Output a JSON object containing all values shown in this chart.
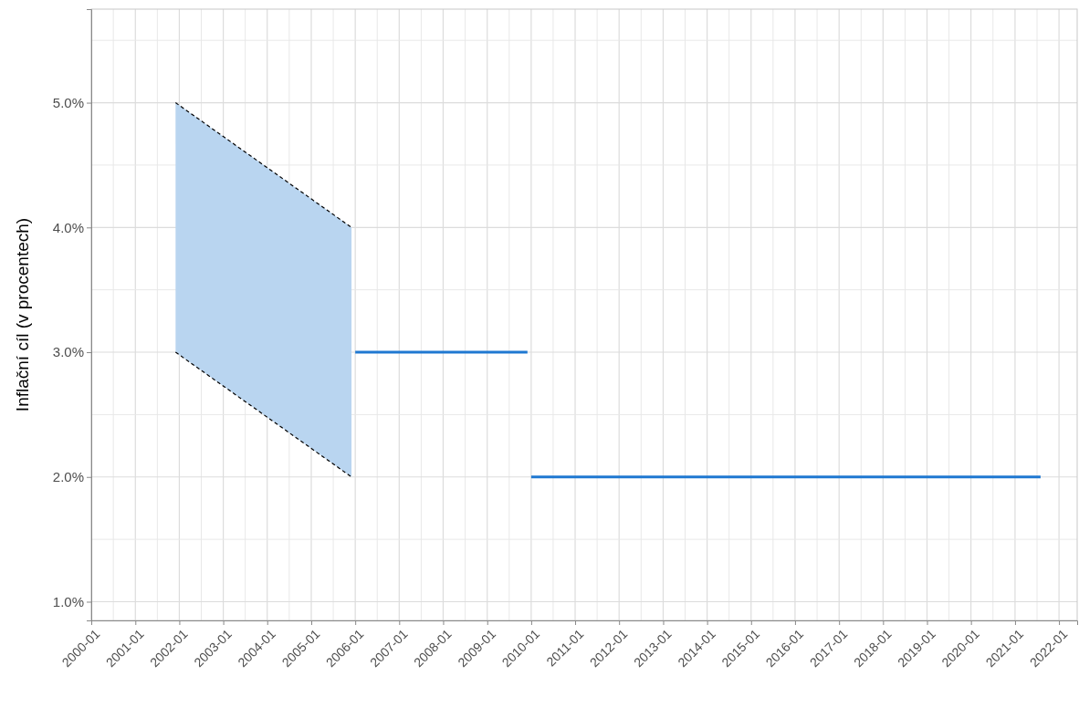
{
  "chart_data": {
    "type": "line",
    "ylabel": "Inflační cíl (v procentech)",
    "xlim": [
      "2000-01",
      "2022-06"
    ],
    "xticks": [
      {
        "value": "2000-01",
        "label": "2000-01"
      },
      {
        "value": "2001-01",
        "label": "2001-01"
      },
      {
        "value": "2002-01",
        "label": "2002-01"
      },
      {
        "value": "2003-01",
        "label": "2003-01"
      },
      {
        "value": "2004-01",
        "label": "2004-01"
      },
      {
        "value": "2005-01",
        "label": "2005-01"
      },
      {
        "value": "2006-01",
        "label": "2006-01"
      },
      {
        "value": "2007-01",
        "label": "2007-01"
      },
      {
        "value": "2008-01",
        "label": "2008-01"
      },
      {
        "value": "2009-01",
        "label": "2009-01"
      },
      {
        "value": "2010-01",
        "label": "2010-01"
      },
      {
        "value": "2011-01",
        "label": "2011-01"
      },
      {
        "value": "2012-01",
        "label": "2012-01"
      },
      {
        "value": "2013-01",
        "label": "2013-01"
      },
      {
        "value": "2014-01",
        "label": "2014-01"
      },
      {
        "value": "2015-01",
        "label": "2015-01"
      },
      {
        "value": "2016-01",
        "label": "2016-01"
      },
      {
        "value": "2017-01",
        "label": "2017-01"
      },
      {
        "value": "2018-01",
        "label": "2018-01"
      },
      {
        "value": "2019-01",
        "label": "2019-01"
      },
      {
        "value": "2020-01",
        "label": "2020-01"
      },
      {
        "value": "2021-01",
        "label": "2021-01"
      },
      {
        "value": "2022-01",
        "label": "2022-01"
      }
    ],
    "ylim": [
      0.85,
      5.75
    ],
    "yticks": [
      {
        "value": 1,
        "label": "1.0%"
      },
      {
        "value": 2,
        "label": "2.0%"
      },
      {
        "value": 3,
        "label": "3.0%"
      },
      {
        "value": 4,
        "label": "4.0%"
      },
      {
        "value": 5,
        "label": "5.0%"
      }
    ],
    "grid": true,
    "series": [
      {
        "color": "#000000",
        "line_style": "dashed",
        "x": [
          "2001-12",
          "2005-12"
        ],
        "values": [
          5,
          4
        ],
        "lower": [
          3,
          2
        ],
        "upper": [
          5,
          4
        ]
      },
      {
        "color": "#000000",
        "line_style": "dashed",
        "x": [
          "2001-12",
          "2005-12"
        ],
        "values": [
          3,
          2
        ]
      },
      {
        "color": "#1f78d1",
        "line_style": "solid",
        "x": [
          "2006-01",
          "2009-12"
        ],
        "values": [
          3,
          3
        ]
      },
      {
        "color": "#1f78d1",
        "line_style": "solid",
        "x": [
          "2010-01",
          "2021-08"
        ],
        "values": [
          2,
          2
        ]
      }
    ]
  }
}
